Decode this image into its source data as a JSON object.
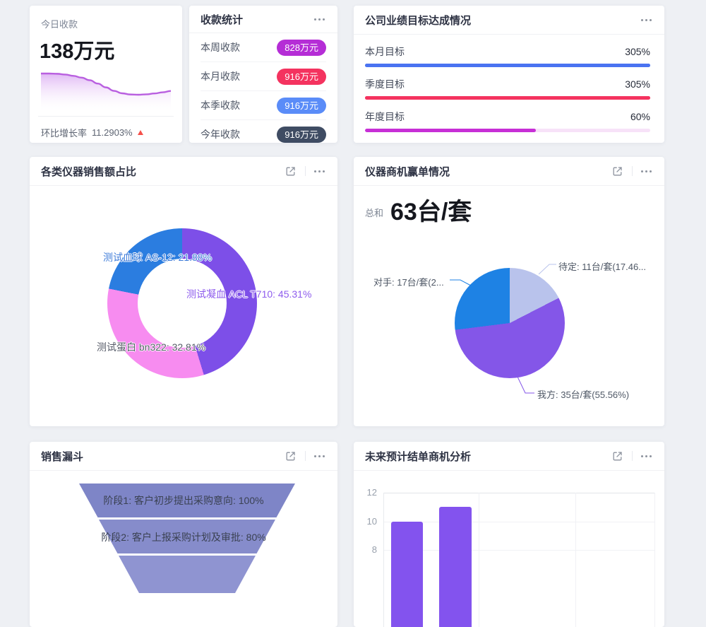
{
  "page": {
    "background": "#eef0f4"
  },
  "today_card": {
    "label": "今日收款",
    "value": "138万元",
    "growth_label": "环比增长率",
    "growth_value": "11.2903%",
    "trend_direction": "up",
    "trend_up_color": "#f5504a"
  },
  "collection_card": {
    "title": "收款统计",
    "rows": [
      {
        "label": "本周收款",
        "value": "828万元",
        "badge_color": "#b52dd6"
      },
      {
        "label": "本月收款",
        "value": "916万元",
        "badge_color": "#f4335f"
      },
      {
        "label": "本季收款",
        "value": "916万元",
        "badge_color": "#5a8cf8"
      },
      {
        "label": "今年收款",
        "value": "916万元",
        "badge_color": "#3f4c63"
      }
    ]
  },
  "target_card": {
    "title": "公司业绩目标达成情况",
    "rows": [
      {
        "label": "本月目标",
        "value": "305%",
        "percent": 100,
        "bar_color": "#4a73f1",
        "track_color": "#4a73f1"
      },
      {
        "label": "季度目标",
        "value": "305%",
        "percent": 100,
        "bar_color": "#f4335f",
        "track_color": "#f4335f"
      },
      {
        "label": "年度目标",
        "value": "60%",
        "percent": 60,
        "bar_color": "#c72fd6",
        "track_color": "#f7e2f8"
      }
    ]
  },
  "donut_card": {
    "title": "各类仪器销售额占比"
  },
  "pie_card": {
    "title": "仪器商机赢单情况",
    "total_label": "总和",
    "total_value": "63台/套"
  },
  "funnel_card": {
    "title": "销售漏斗"
  },
  "bar_card": {
    "title": "未来预计结单商机分析"
  },
  "chart_data": [
    {
      "id": "today-collection-trend",
      "type": "area",
      "values": [
        50,
        50,
        49.8,
        49.2,
        48.2,
        46.8,
        44.8,
        42.2,
        39.2,
        36.5,
        34.6,
        33.7,
        33.5,
        33.8,
        34.5,
        35.4,
        36.4
      ],
      "line_color": "#b95fe0",
      "fill_from": "#d9a6f2",
      "fill_to": "#ffffff"
    },
    {
      "id": "instrument-sales-share",
      "type": "pie",
      "subtype": "donut",
      "start": "top",
      "direction": "clockwise",
      "series": [
        {
          "name": "测试凝血 ACL T710",
          "value": 45.31,
          "unit": "%",
          "color": "#7d4fe8",
          "label": "测试凝血 ACL T710: 45.31%",
          "label_color": "#8e5ced"
        },
        {
          "name": "测试蛋白 bn322",
          "value": 32.81,
          "unit": "%",
          "color": "#f78cf0",
          "label": "测试蛋白 bn322: 32.81%",
          "label_color": "#565b68"
        },
        {
          "name": "测试血球 AS-12",
          "value": 21.88,
          "unit": "%",
          "color": "#2b7de0",
          "label": "测试血球 AS-12: 21.88%",
          "label_color": "#3f7cd9"
        }
      ]
    },
    {
      "id": "opportunity-win",
      "type": "pie",
      "start": "top",
      "direction": "clockwise",
      "total_label": "总和",
      "total_value": "63台/套",
      "series": [
        {
          "name": "待定",
          "value": 11,
          "unit": "台/套",
          "pct": 17.46,
          "color": "#b9c3ec",
          "label": "待定: 11台/套(17.46..."
        },
        {
          "name": "我方",
          "value": 35,
          "unit": "台/套",
          "pct": 55.56,
          "color": "#8456e8",
          "label": "我方: 35台/套(55.56%)"
        },
        {
          "name": "对手",
          "value": 17,
          "unit": "台/套",
          "pct": 26.98,
          "color": "#1e82e4",
          "label": "对手: 17台/套(2..."
        }
      ]
    },
    {
      "id": "sales-funnel",
      "type": "funnel",
      "stages": [
        {
          "text": "阶段1: 客户初步提出采购意向: 100%",
          "value": 100,
          "color": "#7e85c7"
        },
        {
          "text": "阶段2: 客户上报采购计划及审批: 80%",
          "value": 80,
          "color": "#868ccb"
        },
        {
          "text": "",
          "value": null,
          "color": "#8f94d1"
        }
      ]
    },
    {
      "id": "future-deals",
      "type": "bar",
      "yticks": [
        8,
        10,
        12
      ],
      "values": [
        10,
        11
      ],
      "bar_color": "#8353ee",
      "ylim_visible": [
        8,
        12
      ]
    }
  ]
}
